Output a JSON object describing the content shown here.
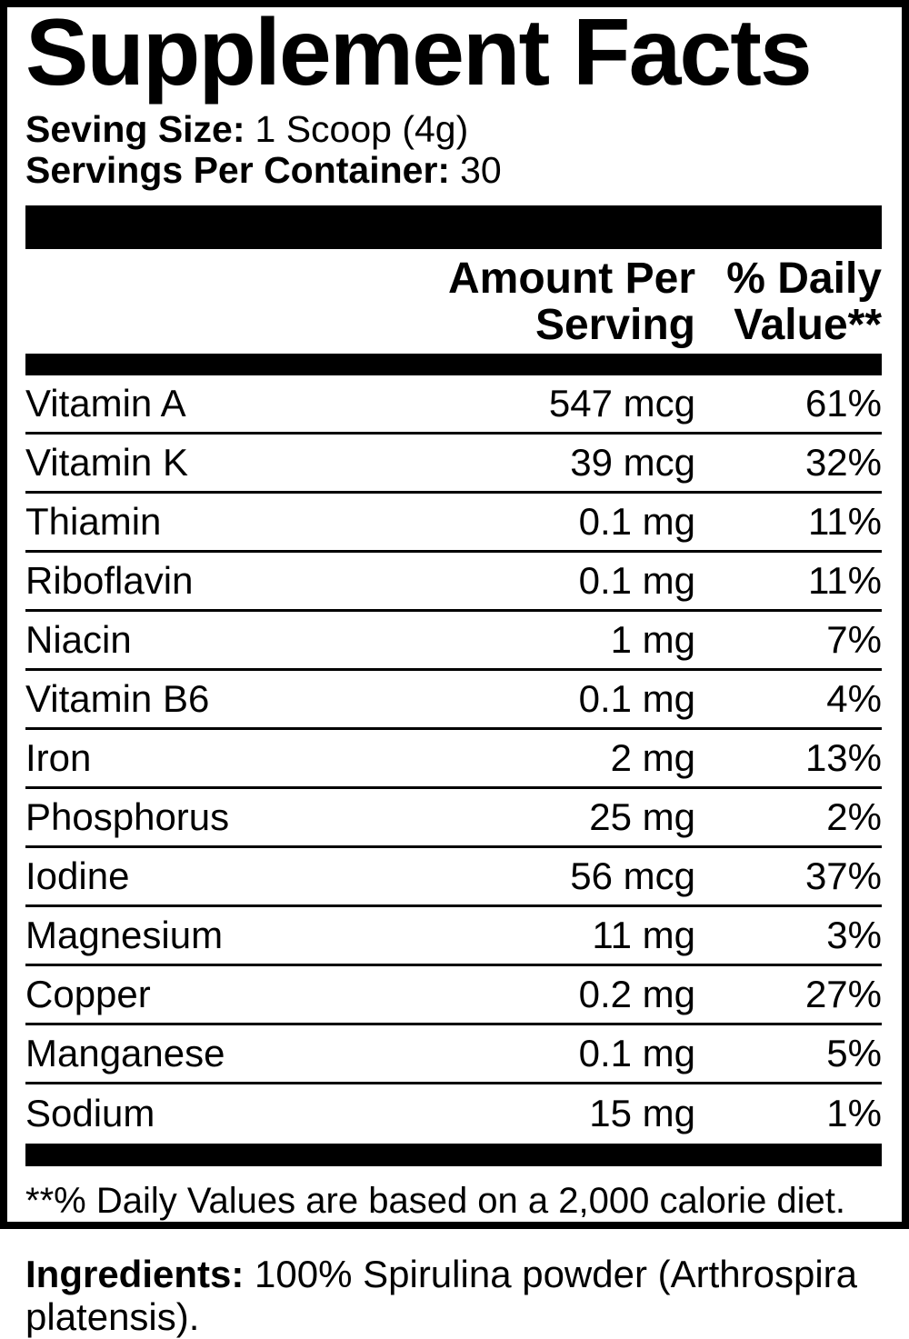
{
  "colors": {
    "text": "#000000",
    "background": "#ffffff"
  },
  "label": {
    "title": "Supplement Facts",
    "serving_size_label": "Seving Size:",
    "serving_size_value": "1 Scoop (4g)",
    "servings_per_container_label": "Servings Per Container:",
    "servings_per_container_value": "30",
    "amount_header_line1": "Amount Per",
    "amount_header_line2": "Serving",
    "dv_header_line1": "% Daily",
    "dv_header_line2": "Value**",
    "rows": [
      {
        "name": "Vitamin A",
        "amount": "547 mcg",
        "dv": "61%"
      },
      {
        "name": "Vitamin K",
        "amount": "39 mcg",
        "dv": "32%"
      },
      {
        "name": "Thiamin",
        "amount": "0.1 mg",
        "dv": "11%"
      },
      {
        "name": "Riboflavin",
        "amount": "0.1 mg",
        "dv": "11%"
      },
      {
        "name": "Niacin",
        "amount": "1 mg",
        "dv": "7%"
      },
      {
        "name": "Vitamin B6",
        "amount": "0.1 mg",
        "dv": "4%"
      },
      {
        "name": "Iron",
        "amount": "2 mg",
        "dv": "13%"
      },
      {
        "name": "Phosphorus",
        "amount": "25 mg",
        "dv": "2%"
      },
      {
        "name": "Iodine",
        "amount": "56 mcg",
        "dv": "37%"
      },
      {
        "name": "Magnesium",
        "amount": "11 mg",
        "dv": "3%"
      },
      {
        "name": "Copper",
        "amount": "0.2 mg",
        "dv": "27%"
      },
      {
        "name": "Manganese",
        "amount": "0.1 mg",
        "dv": "5%"
      },
      {
        "name": "Sodium",
        "amount": "15 mg",
        "dv": "1%"
      }
    ],
    "footnote": "**% Daily Values are based on a 2,000 calorie diet."
  },
  "ingredients": {
    "label": "Ingredients:",
    "text": "100% Spirulina powder (Arthrospira platensis)."
  }
}
